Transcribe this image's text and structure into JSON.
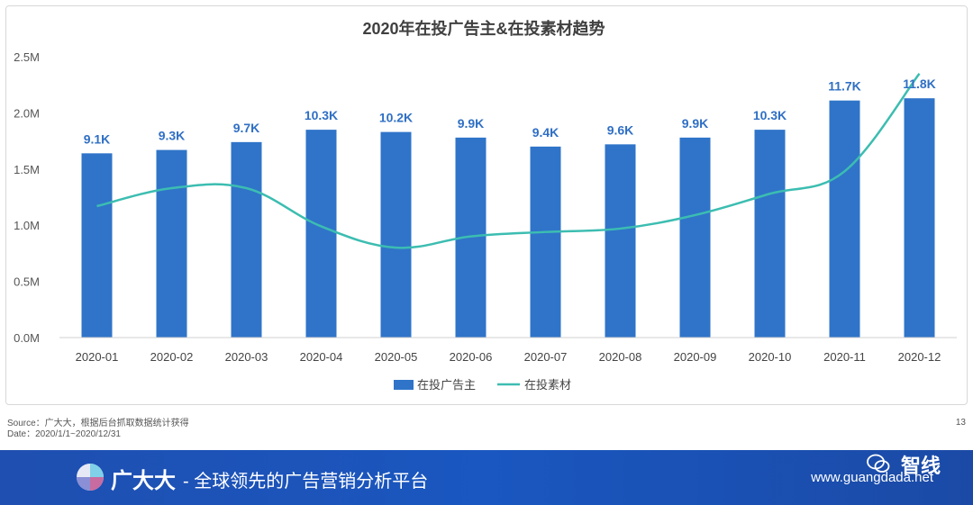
{
  "chart_data": {
    "type": "bar",
    "title": "2020年在投广告主&在投素材趋势",
    "categories": [
      "2020-01",
      "2020-02",
      "2020-03",
      "2020-04",
      "2020-05",
      "2020-06",
      "2020-07",
      "2020-08",
      "2020-09",
      "2020-10",
      "2020-11",
      "2020-12"
    ],
    "ylim": [
      0,
      2500000
    ],
    "y_ticks": [
      {
        "value": 0,
        "label": "0.0M"
      },
      {
        "value": 500000,
        "label": "0.5M"
      },
      {
        "value": 1000000,
        "label": "1.0M"
      },
      {
        "value": 1500000,
        "label": "1.5M"
      },
      {
        "value": 2000000,
        "label": "2.0M"
      },
      {
        "value": 2500000,
        "label": "2.5M"
      }
    ],
    "grid": false,
    "legend_position": "bottom-center",
    "series": [
      {
        "name": "在投广告主",
        "kind": "bar",
        "color": "#2f74c9",
        "values": [
          1640000,
          1670000,
          1740000,
          1850000,
          1830000,
          1780000,
          1700000,
          1720000,
          1780000,
          1850000,
          2110000,
          2130000
        ],
        "data_labels": [
          "9.1K",
          "9.3K",
          "9.7K",
          "10.3K",
          "10.2K",
          "9.9K",
          "9.4K",
          "9.6K",
          "9.9K",
          "10.3K",
          "11.7K",
          "11.8K"
        ]
      },
      {
        "name": "在投素材",
        "kind": "line",
        "smooth": true,
        "color": "#3cbdb1",
        "values": [
          1170000,
          1330000,
          1330000,
          990000,
          800000,
          900000,
          940000,
          970000,
          1090000,
          1280000,
          1480000,
          2350000
        ]
      }
    ]
  },
  "notes": {
    "source": "Source：广大大，根据后台抓取数据统计获得",
    "date": "Date：2020/1/1~2020/12/31",
    "page_number": "13"
  },
  "footer": {
    "brand": "广大大",
    "slogan": "- 全球领先的广告营销分析平台",
    "url": "www.guangdada.net",
    "watermark": "智线",
    "logo_icon": "pie-logo-icon",
    "watermark_icon": "wechat-icon"
  }
}
